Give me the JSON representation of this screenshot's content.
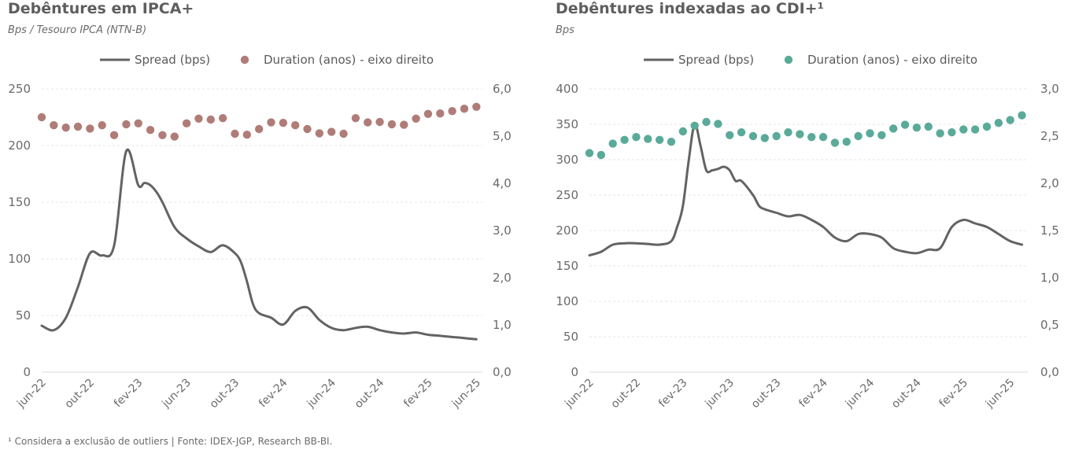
{
  "footnote": "¹ Considera a exclusão de outliers | Fonte: IDEX-JGP, Research BB-BI.",
  "chart_data": [
    {
      "type": "line",
      "title": "Debêntures em IPCA+",
      "subtitle": "Bps / Tesouro IPCA (NTN-B)",
      "legend_placement": "top",
      "legend": {
        "line_label": "Spread (bps)",
        "dot_label": "Duration (anos) - eixo direito"
      },
      "colors": {
        "line": "#636363",
        "dots": "#b07c78",
        "grid": "#e6e6e6"
      },
      "x_ticks": [
        "jun-22",
        "out-22",
        "fev-23",
        "jun-23",
        "out-23",
        "fev-24",
        "jun-24",
        "out-24",
        "fev-25",
        "jun-25"
      ],
      "x_range": [
        0,
        36.5
      ],
      "y_left": {
        "range": [
          0,
          250
        ],
        "ticks": [
          "0",
          "50",
          "100",
          "150",
          "200",
          "250"
        ]
      },
      "y_right": {
        "range": [
          0,
          6
        ],
        "ticks": [
          "0,0",
          "1,0",
          "2,0",
          "3,0",
          "4,0",
          "5,0",
          "6,0"
        ]
      },
      "grid": true,
      "series": [
        {
          "name": "Spread (bps)",
          "axis": "left",
          "x": [
            0,
            1,
            2,
            3,
            4,
            5,
            6,
            7,
            8,
            8.5,
            9,
            9.5,
            10,
            11,
            12,
            13,
            14,
            15,
            16,
            16.5,
            17,
            17.5,
            18,
            19,
            20,
            21,
            22,
            23,
            24,
            25,
            26,
            27,
            28,
            29,
            30,
            31,
            32,
            33,
            34,
            35,
            36
          ],
          "values": [
            41,
            37,
            48,
            75,
            105,
            103,
            112,
            195,
            165,
            167,
            165,
            159,
            150,
            128,
            118,
            111,
            106,
            112,
            105,
            97,
            80,
            60,
            52,
            48,
            42,
            54,
            57,
            46,
            39,
            37,
            39,
            40,
            37,
            35,
            34,
            35,
            33,
            32,
            31,
            30,
            29
          ]
        },
        {
          "name": "Duration (anos) - eixo direito",
          "axis": "right",
          "x": [
            0,
            1,
            2,
            3,
            4,
            5,
            6,
            7,
            8,
            9,
            10,
            11,
            12,
            13,
            14,
            15,
            16,
            17,
            18,
            19,
            20,
            21,
            22,
            23,
            24,
            25,
            26,
            27,
            28,
            29,
            30,
            31,
            32,
            33,
            34,
            35,
            36
          ],
          "values": [
            5.4,
            5.23,
            5.18,
            5.2,
            5.16,
            5.23,
            5.02,
            5.25,
            5.27,
            5.13,
            5.02,
            4.99,
            5.27,
            5.37,
            5.35,
            5.38,
            5.05,
            5.03,
            5.15,
            5.29,
            5.28,
            5.23,
            5.15,
            5.06,
            5.09,
            5.05,
            5.38,
            5.29,
            5.3,
            5.25,
            5.24,
            5.37,
            5.47,
            5.48,
            5.53,
            5.58,
            5.62
          ]
        }
      ]
    },
    {
      "type": "line",
      "title": "Debêntures indexadas ao CDI+¹",
      "subtitle": "Bps",
      "legend_placement": "top",
      "legend": {
        "line_label": "Spread (bps)",
        "dot_label": "Duration (anos) - eixo direito"
      },
      "colors": {
        "line": "#636363",
        "dots": "#5aaa9a",
        "grid": "#e6e6e6"
      },
      "x_ticks": [
        "jun-22",
        "out-22",
        "fev-23",
        "jun-23",
        "out-23",
        "fev-24",
        "jun-24",
        "out-24",
        "fev-25",
        "jun-25"
      ],
      "x_range": [
        0,
        37.5
      ],
      "y_left": {
        "range": [
          0,
          400
        ],
        "ticks": [
          "0",
          "50",
          "100",
          "150",
          "200",
          "250",
          "300",
          "350",
          "400"
        ]
      },
      "y_right": {
        "range": [
          0,
          3
        ],
        "ticks": [
          "0,0",
          "0,5",
          "1,0",
          "1,5",
          "2,0",
          "2,5",
          "3,0"
        ]
      },
      "grid": true,
      "series": [
        {
          "name": "Spread (bps)",
          "axis": "left",
          "x": [
            0,
            1,
            2,
            3,
            4,
            5,
            6,
            7,
            7.5,
            8,
            8.5,
            9,
            9.5,
            10,
            10.5,
            11,
            11.5,
            12,
            12.5,
            13,
            14,
            14.5,
            15,
            16,
            17,
            18,
            19,
            20,
            21,
            22,
            23,
            24,
            25,
            26,
            27,
            28,
            29,
            30,
            31,
            32,
            33,
            34,
            35,
            36,
            37
          ],
          "values": [
            165,
            170,
            180,
            182,
            182,
            181,
            180,
            185,
            205,
            235,
            300,
            350,
            320,
            285,
            285,
            287,
            290,
            285,
            270,
            270,
            250,
            235,
            230,
            225,
            220,
            222,
            215,
            205,
            190,
            185,
            195,
            195,
            190,
            175,
            170,
            168,
            173,
            175,
            205,
            215,
            210,
            205,
            195,
            185,
            180
          ]
        },
        {
          "name": "Duration (anos) - eixo direito",
          "axis": "right",
          "x": [
            0,
            1,
            2,
            3,
            4,
            5,
            6,
            7,
            8,
            9,
            10,
            11,
            12,
            13,
            14,
            15,
            16,
            17,
            18,
            19,
            20,
            21,
            22,
            23,
            24,
            25,
            26,
            27,
            28,
            29,
            30,
            31,
            32,
            33,
            34,
            35,
            36,
            37
          ],
          "values": [
            2.32,
            2.3,
            2.42,
            2.46,
            2.49,
            2.47,
            2.46,
            2.44,
            2.55,
            2.61,
            2.65,
            2.63,
            2.51,
            2.54,
            2.5,
            2.48,
            2.5,
            2.54,
            2.52,
            2.49,
            2.49,
            2.43,
            2.44,
            2.5,
            2.53,
            2.51,
            2.58,
            2.62,
            2.59,
            2.6,
            2.53,
            2.54,
            2.57,
            2.57,
            2.6,
            2.64,
            2.67,
            2.72
          ]
        }
      ]
    }
  ]
}
